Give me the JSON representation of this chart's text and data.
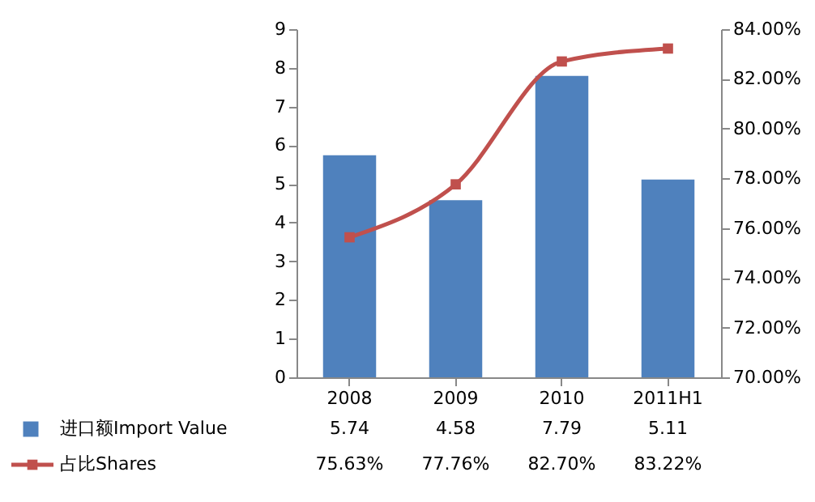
{
  "chart_data": {
    "type": "bar",
    "categories": [
      "2008",
      "2009",
      "2010",
      "2011H1"
    ],
    "series": [
      {
        "name": "进口额Import Value",
        "color": "#4f81bd",
        "values": [
          5.74,
          4.58,
          7.79,
          5.11
        ],
        "value_labels": [
          "5.74",
          "4.58",
          "7.79",
          "5.11"
        ]
      },
      {
        "name": "占比Shares",
        "type": "line",
        "axis": "y2",
        "marker": "square",
        "color": "#c0504d",
        "values": [
          75.63,
          77.76,
          82.7,
          83.22
        ],
        "value_labels": [
          "75.63%",
          "77.76%",
          "82.70%",
          "83.22%"
        ]
      }
    ],
    "ylim": [
      0,
      9
    ],
    "yticks": [
      0,
      1,
      2,
      3,
      4,
      5,
      6,
      7,
      8,
      9
    ],
    "y2lim": [
      70,
      84
    ],
    "y2ticks": [
      {
        "value": 70,
        "label": "70.00%"
      },
      {
        "value": 72,
        "label": "72.00%"
      },
      {
        "value": 74,
        "label": "74.00%"
      },
      {
        "value": 76,
        "label": "76.00%"
      },
      {
        "value": 78,
        "label": "78.00%"
      },
      {
        "value": 80,
        "label": "80.00%"
      },
      {
        "value": 82,
        "label": "82.00%"
      },
      {
        "value": 84,
        "label": "84.00%"
      }
    ],
    "grid": false,
    "legend": "bottom"
  }
}
